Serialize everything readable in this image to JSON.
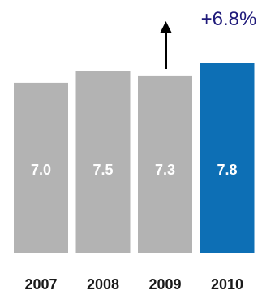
{
  "chart_data": {
    "type": "bar",
    "categories": [
      "2007",
      "2008",
      "2009",
      "2010"
    ],
    "values": [
      7.0,
      7.5,
      7.3,
      7.8
    ],
    "value_labels": [
      "7.0",
      "7.5",
      "7.3",
      "7.8"
    ],
    "title": "",
    "xlabel": "",
    "ylabel": "",
    "ylim": [
      0,
      7.8
    ],
    "grid": false,
    "legend": "none",
    "colors": {
      "default_bar": "#b3b3b3",
      "highlight_bar": "#0d6fb5",
      "bar_label": "#ffffff",
      "tick_label": "#1a1a1a",
      "annotation": "#1f1a7a",
      "arrow": "#000000"
    },
    "highlight_index": 3,
    "annotation": {
      "text": "+6.8%",
      "arrow": "up-arrow-icon",
      "arrow_over_category": "2009"
    }
  }
}
